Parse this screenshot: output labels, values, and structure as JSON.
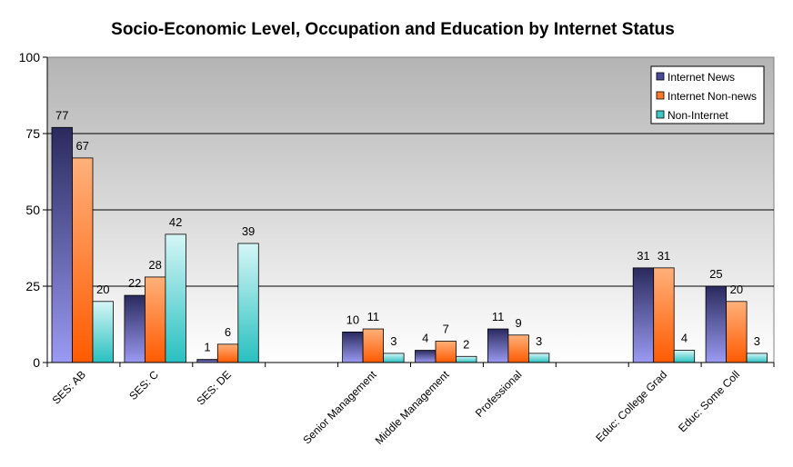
{
  "chart_data": {
    "type": "bar",
    "title": "Socio-Economic Level, Occupation and Education by Internet Status",
    "xlabel": "",
    "ylabel": "",
    "ylim": [
      0,
      100
    ],
    "yticks": [
      "0",
      "25",
      "50",
      "75",
      "100"
    ],
    "grid": true,
    "legend_position": "top-right",
    "categories": [
      "SES: AB",
      "SES: C",
      "SES: DE",
      "",
      "Senior Management",
      "Middle Management",
      "Professional",
      "",
      "Educ: College Grad",
      "Educ: Some Coll"
    ],
    "series": [
      {
        "name": "Internet News",
        "color": "#4a4a9a",
        "values": [
          77,
          22,
          1,
          null,
          10,
          4,
          11,
          null,
          31,
          25
        ]
      },
      {
        "name": "Internet Non-news",
        "color": "#ff7a2a",
        "values": [
          67,
          28,
          6,
          null,
          11,
          7,
          9,
          null,
          31,
          20
        ]
      },
      {
        "name": "Non-Internet",
        "color": "#40c8c8",
        "values": [
          20,
          42,
          39,
          null,
          3,
          2,
          3,
          null,
          4,
          3
        ]
      }
    ]
  }
}
